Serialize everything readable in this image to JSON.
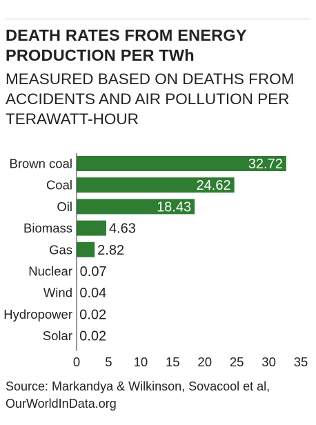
{
  "chart_data": {
    "type": "bar",
    "orientation": "horizontal",
    "title": "DEATH RATES FROM ENERGY PRODUCTION PER TWh",
    "subtitle": "MEASURED BASED ON DEATHS FROM ACCIDENTS AND AIR POLLUTION PER TERAWATT-HOUR",
    "categories": [
      "Brown coal",
      "Coal",
      "Oil",
      "Biomass",
      "Gas",
      "Nuclear",
      "Wind",
      "Hydropower",
      "Solar"
    ],
    "values": [
      32.72,
      24.62,
      18.43,
      4.63,
      2.82,
      0.07,
      0.04,
      0.02,
      0.02
    ],
    "value_labels": [
      "32.72",
      "24.62",
      "18.43",
      "4.63",
      "2.82",
      "0.07",
      "0.04",
      "0.02",
      "0.02"
    ],
    "xlim": [
      0,
      35
    ],
    "xticks": [
      "0",
      "5",
      "10",
      "15",
      "20",
      "25",
      "30",
      "35"
    ],
    "grid": false,
    "bar_color": "#2e7d32",
    "source": "Source: Markandya & Wilkinson, Sovacool et al, OurWorldInData.org"
  }
}
